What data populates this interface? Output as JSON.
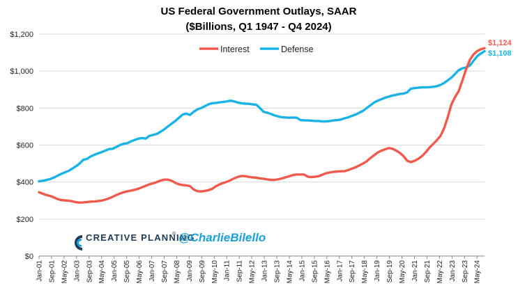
{
  "chart_data": {
    "type": "line",
    "title": "US Federal Government Outlays, SAAR",
    "subtitle": "($Billions, Q1 1947 - Q4 2024)",
    "xlabel": "",
    "ylabel": "",
    "ylim": [
      0,
      1200
    ],
    "yticks": [
      "$0",
      "$200",
      "$400",
      "$600",
      "$800",
      "$1,000",
      "$1,200"
    ],
    "grid": "horizontal",
    "legend_position": "top-center",
    "x_tick_labels": [
      "Jan-01",
      "Sep-01",
      "May-02",
      "Jan-03",
      "Sep-03",
      "May-04",
      "Jan-05",
      "Sep-05",
      "May-06",
      "Jan-07",
      "Sep-07",
      "May-08",
      "Jan-09",
      "Sep-09",
      "May-10",
      "Jan-11",
      "Sep-11",
      "May-12",
      "Jan-13",
      "Sep-13",
      "May-14",
      "Jan-15",
      "Sep-15",
      "May-16",
      "Jan-17",
      "Sep-17",
      "May-18",
      "Jan-19",
      "Sep-19",
      "May-20",
      "Jan-21",
      "Sep-21",
      "May-22",
      "Jan-23",
      "Sep-23",
      "May-24"
    ],
    "series": [
      {
        "name": "Interest",
        "color": "#ef5a4c",
        "end_label": "$1,124",
        "values": [
          345,
          337,
          330,
          325,
          318,
          308,
          303,
          301,
          299,
          296,
          291,
          289,
          290,
          292,
          294,
          295,
          297,
          300,
          305,
          312,
          320,
          330,
          338,
          345,
          350,
          354,
          358,
          364,
          372,
          380,
          388,
          393,
          400,
          408,
          413,
          413,
          407,
          396,
          388,
          384,
          382,
          378,
          360,
          351,
          349,
          352,
          356,
          363,
          377,
          387,
          395,
          401,
          410,
          420,
          428,
          433,
          432,
          428,
          425,
          424,
          420,
          418,
          414,
          412,
          412,
          415,
          420,
          426,
          432,
          438,
          441,
          441,
          441,
          429,
          427,
          429,
          432,
          440,
          448,
          452,
          455,
          457,
          458,
          459,
          465,
          473,
          480,
          490,
          500,
          512,
          530,
          545,
          560,
          570,
          577,
          584,
          580,
          570,
          558,
          540,
          515,
          508,
          515,
          525,
          540,
          560,
          585,
          605,
          625,
          648,
          690,
          750,
          820,
          860,
          892,
          950,
          1010,
          1060,
          1090,
          1108,
          1118,
          1124
        ]
      },
      {
        "name": "Defense",
        "color": "#19b3e6",
        "end_label": "$1,108",
        "values": [
          404,
          407,
          411,
          416,
          424,
          434,
          444,
          452,
          460,
          472,
          485,
          500,
          520,
          525,
          538,
          547,
          555,
          562,
          570,
          578,
          580,
          590,
          600,
          607,
          610,
          620,
          628,
          635,
          638,
          635,
          650,
          655,
          660,
          672,
          685,
          700,
          715,
          730,
          748,
          765,
          770,
          763,
          780,
          793,
          800,
          810,
          820,
          826,
          828,
          831,
          833,
          836,
          840,
          836,
          830,
          826,
          824,
          823,
          820,
          818,
          800,
          780,
          775,
          768,
          760,
          755,
          750,
          749,
          748,
          749,
          748,
          735,
          734,
          733,
          732,
          730,
          730,
          728,
          728,
          730,
          733,
          735,
          738,
          745,
          750,
          758,
          765,
          775,
          785,
          800,
          815,
          830,
          840,
          848,
          856,
          862,
          868,
          872,
          876,
          878,
          885,
          905,
          908,
          910,
          912,
          912,
          913,
          915,
          918,
          925,
          935,
          950,
          965,
          985,
          1005,
          1015,
          1020,
          1030,
          1055,
          1080,
          1095,
          1108
        ]
      }
    ]
  },
  "branding": {
    "company": "CREATIVE PLANNING",
    "trademark": "®",
    "handle": "@CharlieBilello"
  }
}
